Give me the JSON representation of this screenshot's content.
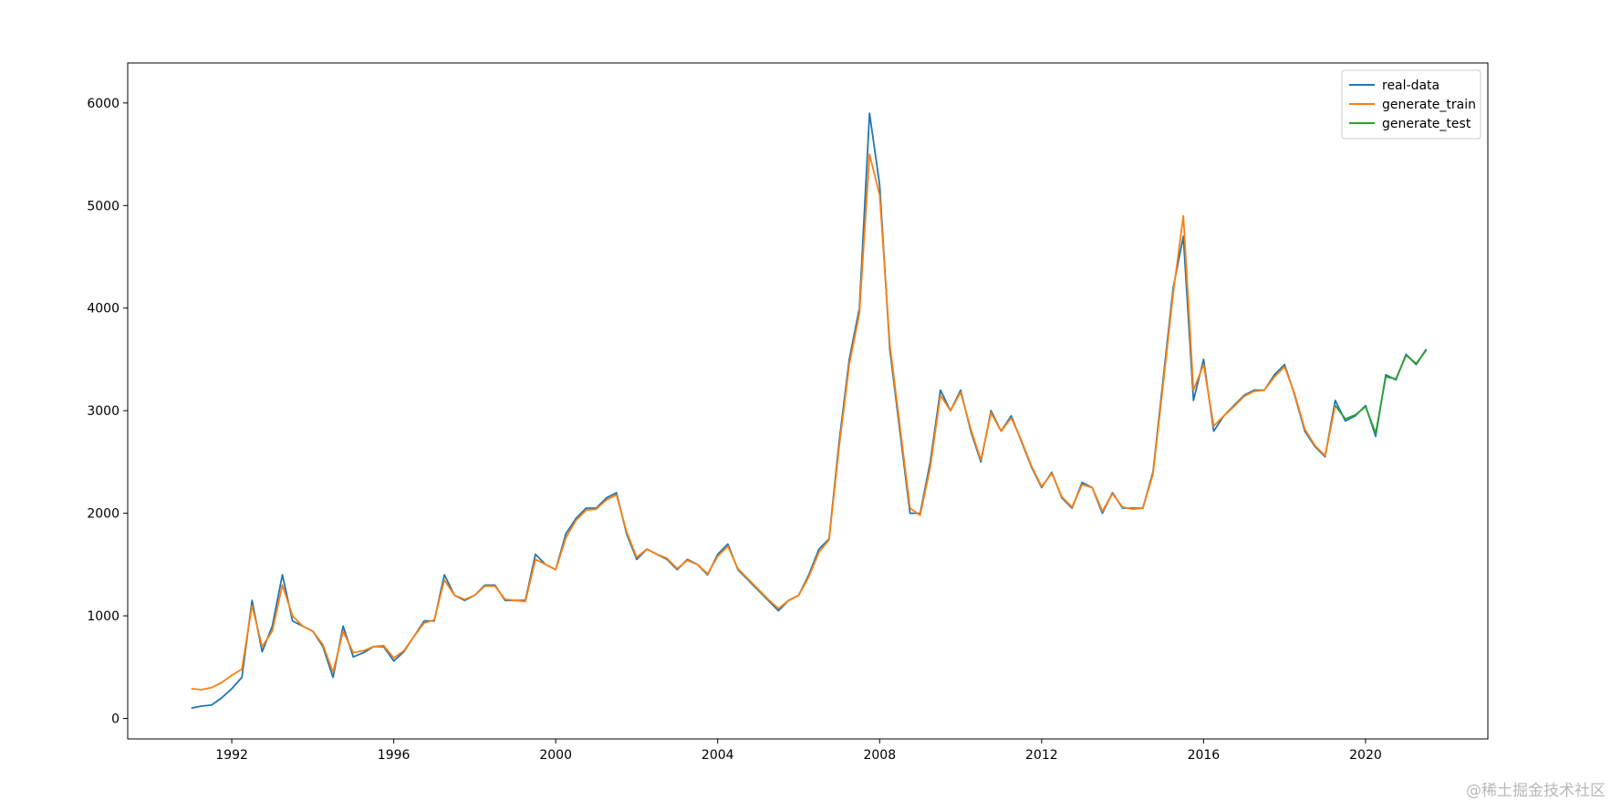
{
  "chart_data": {
    "type": "line",
    "x": [
      1991.0,
      1991.25,
      1991.5,
      1991.75,
      1992.0,
      1992.25,
      1992.5,
      1992.75,
      1993.0,
      1993.25,
      1993.5,
      1993.75,
      1994.0,
      1994.25,
      1994.5,
      1994.75,
      1995.0,
      1995.25,
      1995.5,
      1995.75,
      1996.0,
      1996.25,
      1996.5,
      1996.75,
      1997.0,
      1997.25,
      1997.5,
      1997.75,
      1998.0,
      1998.25,
      1998.5,
      1998.75,
      1999.0,
      1999.25,
      1999.5,
      1999.75,
      2000.0,
      2000.25,
      2000.5,
      2000.75,
      2001.0,
      2001.25,
      2001.5,
      2001.75,
      2002.0,
      2002.25,
      2002.5,
      2002.75,
      2003.0,
      2003.25,
      2003.5,
      2003.75,
      2004.0,
      2004.25,
      2004.5,
      2004.75,
      2005.0,
      2005.25,
      2005.5,
      2005.75,
      2006.0,
      2006.25,
      2006.5,
      2006.75,
      2007.0,
      2007.25,
      2007.5,
      2007.75,
      2008.0,
      2008.25,
      2008.5,
      2008.75,
      2009.0,
      2009.25,
      2009.5,
      2009.75,
      2010.0,
      2010.25,
      2010.5,
      2010.75,
      2011.0,
      2011.25,
      2011.5,
      2011.75,
      2012.0,
      2012.25,
      2012.5,
      2012.75,
      2013.0,
      2013.25,
      2013.5,
      2013.75,
      2014.0,
      2014.25,
      2014.5,
      2014.75,
      2015.0,
      2015.25,
      2015.5,
      2015.75,
      2016.0,
      2016.25,
      2016.5,
      2016.75,
      2017.0,
      2017.25,
      2017.5,
      2017.75,
      2018.0,
      2018.25,
      2018.5,
      2018.75,
      2019.0,
      2019.25,
      2019.5,
      2019.75,
      2020.0,
      2020.25,
      2020.5,
      2020.75,
      2021.0,
      2021.25,
      2021.5
    ],
    "series": [
      {
        "name": "real-data",
        "color": "#1f77b4",
        "values": [
          100,
          120,
          130,
          200,
          290,
          400,
          1150,
          650,
          900,
          1400,
          950,
          900,
          850,
          700,
          400,
          900,
          600,
          640,
          700,
          700,
          560,
          650,
          800,
          950,
          950,
          1400,
          1200,
          1150,
          1200,
          1300,
          1300,
          1150,
          1150,
          1150,
          1600,
          1500,
          1450,
          1800,
          1950,
          2050,
          2050,
          2150,
          2200,
          1800,
          1550,
          1650,
          1600,
          1550,
          1450,
          1550,
          1500,
          1400,
          1600,
          1700,
          1450,
          1350,
          1250,
          1150,
          1050,
          1150,
          1200,
          1400,
          1650,
          1750,
          2700,
          3500,
          4000,
          5900,
          5200,
          3600,
          2800,
          2000,
          2000,
          2500,
          3200,
          3000,
          3200,
          2800,
          2500,
          3000,
          2800,
          2950,
          2700,
          2450,
          2250,
          2400,
          2150,
          2050,
          2300,
          2250,
          2000,
          2200,
          2050,
          2050,
          2050,
          2400,
          3300,
          4200,
          4700,
          3100,
          3500,
          2800,
          2950,
          3050,
          3150,
          3200,
          3200,
          3350,
          3450,
          3150,
          2800,
          2650,
          2550,
          3100,
          2900,
          2950,
          3050,
          2750,
          3350,
          3300,
          3550,
          3450,
          3600
        ]
      },
      {
        "name": "generate_train",
        "color": "#ff7f0e",
        "values": [
          290,
          280,
          300,
          350,
          420,
          480,
          1100,
          700,
          850,
          1300,
          1000,
          900,
          850,
          720,
          450,
          850,
          640,
          660,
          700,
          710,
          590,
          660,
          800,
          930,
          960,
          1350,
          1200,
          1160,
          1200,
          1290,
          1290,
          1160,
          1150,
          1140,
          1550,
          1500,
          1450,
          1760,
          1930,
          2030,
          2040,
          2130,
          2180,
          1820,
          1570,
          1650,
          1600,
          1560,
          1460,
          1540,
          1500,
          1410,
          1580,
          1680,
          1460,
          1360,
          1260,
          1160,
          1070,
          1150,
          1200,
          1380,
          1620,
          1740,
          2650,
          3450,
          3950,
          5500,
          5100,
          3650,
          2850,
          2050,
          1980,
          2450,
          3150,
          3000,
          3180,
          2820,
          2520,
          2980,
          2800,
          2930,
          2710,
          2460,
          2260,
          2390,
          2160,
          2060,
          2280,
          2250,
          2020,
          2190,
          2060,
          2040,
          2050,
          2380,
          3250,
          4150,
          4900,
          3200,
          3450,
          2850,
          2950,
          3040,
          3140,
          3190,
          3200,
          3330,
          3430,
          3160,
          2820,
          2660,
          2560,
          3050,
          null,
          null,
          null,
          null,
          null,
          null,
          null,
          null,
          null
        ]
      },
      {
        "name": "generate_test",
        "color": "#2ca02c",
        "values": [
          null,
          null,
          null,
          null,
          null,
          null,
          null,
          null,
          null,
          null,
          null,
          null,
          null,
          null,
          null,
          null,
          null,
          null,
          null,
          null,
          null,
          null,
          null,
          null,
          null,
          null,
          null,
          null,
          null,
          null,
          null,
          null,
          null,
          null,
          null,
          null,
          null,
          null,
          null,
          null,
          null,
          null,
          null,
          null,
          null,
          null,
          null,
          null,
          null,
          null,
          null,
          null,
          null,
          null,
          null,
          null,
          null,
          null,
          null,
          null,
          null,
          null,
          null,
          null,
          null,
          null,
          null,
          null,
          null,
          null,
          null,
          null,
          null,
          null,
          null,
          null,
          null,
          null,
          null,
          null,
          null,
          null,
          null,
          null,
          null,
          null,
          null,
          null,
          null,
          null,
          null,
          null,
          null,
          null,
          null,
          null,
          null,
          null,
          null,
          null,
          null,
          null,
          null,
          null,
          null,
          null,
          null,
          null,
          null,
          null,
          null,
          null,
          null,
          3050,
          2920,
          2960,
          3040,
          2780,
          3330,
          3310,
          3540,
          3460,
          3590
        ]
      }
    ],
    "xlim": [
      1989.43,
      2023.02
    ],
    "xticks": [
      1992,
      1996,
      2000,
      2004,
      2008,
      2012,
      2016,
      2020
    ],
    "ylim": [
      -200,
      6390
    ],
    "yticks": [
      0,
      1000,
      2000,
      3000,
      4000,
      5000,
      6000
    ],
    "legend": "upper right"
  },
  "watermark": "@稀土掘金技术社区"
}
